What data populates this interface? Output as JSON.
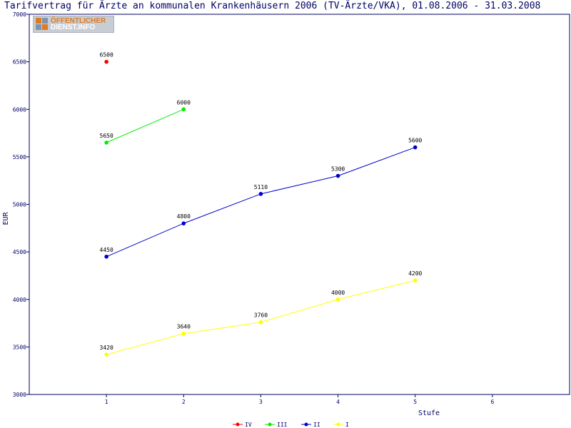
{
  "page": {
    "title": "Tarifvertrag für Ärzte an kommunalen Krankenhäusern 2006 (TV-Ärzte/VKA), 01.08.2006 - 31.03.2008"
  },
  "logo": {
    "line1": "ÖFFENTLICHER",
    "line2": "DIENST.INFO"
  },
  "colors": {
    "frame": "#000066",
    "text": "#000066",
    "IV": "#ff0000",
    "III": "#00ee00",
    "II": "#0000cc",
    "I": "#ffff00"
  },
  "chart_data": {
    "type": "line",
    "title": "Tarifvertrag für Ärzte an kommunalen Krankenhäusern 2006 (TV-Ärzte/VKA), 01.08.2006 - 31.03.2008",
    "xlabel": "Stufe",
    "ylabel": "EUR",
    "xlim": [
      0,
      7
    ],
    "ylim": [
      3000,
      7000
    ],
    "x_ticks": [
      1,
      2,
      3,
      4,
      5,
      6
    ],
    "y_ticks": [
      3000,
      3500,
      4000,
      4500,
      5000,
      5500,
      6000,
      6500,
      7000
    ],
    "grid": false,
    "legend_position": "bottom-center",
    "series": [
      {
        "name": "IV",
        "color": "#ff0000",
        "x": [
          1
        ],
        "values": [
          6500
        ]
      },
      {
        "name": "III",
        "color": "#00ee00",
        "x": [
          1,
          2
        ],
        "values": [
          5650,
          6000
        ]
      },
      {
        "name": "II",
        "color": "#0000cc",
        "x": [
          1,
          2,
          3,
          4,
          5
        ],
        "values": [
          4450,
          4800,
          5110,
          5300,
          5600
        ]
      },
      {
        "name": "I",
        "color": "#ffff00",
        "x": [
          1,
          2,
          3,
          4,
          5
        ],
        "values": [
          3420,
          3640,
          3760,
          4000,
          4200
        ]
      }
    ]
  }
}
